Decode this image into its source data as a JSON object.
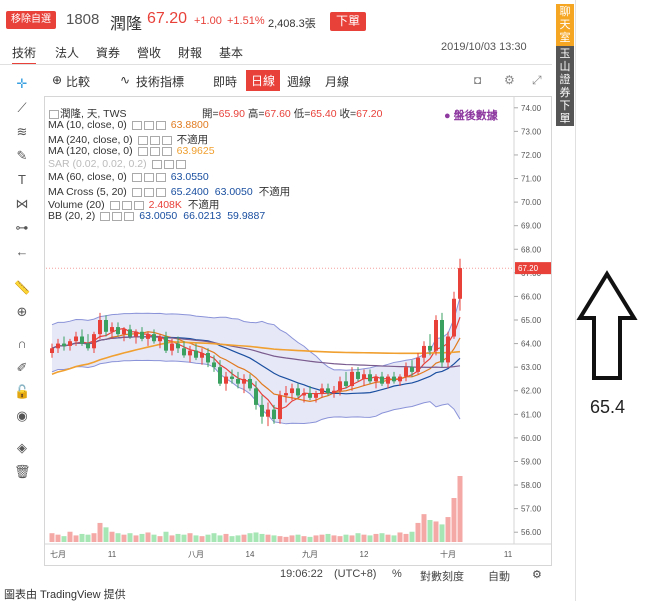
{
  "header": {
    "remove_label": "移除自選",
    "code": "1808",
    "name": "潤隆",
    "price": "67.20",
    "change": "+1.00",
    "change_pct": "+1.51%",
    "volume": "2,408.3張",
    "order_label": "下單",
    "datetime": "2019/10/03 13:30"
  },
  "tabs": [
    "技術",
    "法人",
    "資券",
    "營收",
    "財報",
    "基本"
  ],
  "toolbar": {
    "compare": "比較",
    "indicators": "技術指標",
    "realtime": "即時",
    "daily": "日線",
    "weekly": "週線",
    "monthly": "月線"
  },
  "legend": {
    "main": "潤隆, 天, TWS",
    "ohlc": {
      "open_label": "開",
      "open": "65.90",
      "high_label": "高",
      "high": "67.60",
      "low_label": "低",
      "low": "65.40",
      "close_label": "收",
      "close": "67.20"
    },
    "post_data": "盤後數據",
    "rows": [
      {
        "label": "MA (10, close, 0)",
        "values": [
          "63.8800"
        ],
        "color": "#e07b20"
      },
      {
        "label": "MA (240, close, 0)",
        "values": [
          "不適用"
        ],
        "color": "#333333"
      },
      {
        "label": "MA (120, close, 0)",
        "values": [
          "63.9625"
        ],
        "color": "#f0a030"
      },
      {
        "label": "SAR (0.02, 0.02, 0.2)",
        "values": [],
        "color": "#bbbbbb",
        "faded": true
      },
      {
        "label": "MA (60, close, 0)",
        "values": [
          "63.0550"
        ],
        "color": "#1a4fa0"
      },
      {
        "label": "MA Cross (5, 20)",
        "values": [
          "65.2400",
          "63.0050",
          "不適用"
        ],
        "color": "#1a4fa0"
      },
      {
        "label": "Volume (20)",
        "values": [
          "2.408K",
          "不適用"
        ],
        "color": "#e8413a"
      },
      {
        "label": "BB (20, 2)",
        "values": [
          "63.0050",
          "66.0213",
          "59.9887"
        ],
        "color": "#1a4fa0"
      }
    ]
  },
  "status": {
    "time": "19:06:22",
    "tz": "(UTC+8)",
    "pct": "%",
    "log": "對數刻度",
    "auto": "自動"
  },
  "side": {
    "chat": "聊天室",
    "order": "玉山證券下單"
  },
  "note": "65.4",
  "credit": "圖表由 TradingView 提供",
  "chart_data": {
    "type": "candlestick",
    "y_axis_ticks": [
      "74.00",
      "73.00",
      "72.00",
      "71.00",
      "70.00",
      "69.00",
      "68.00",
      "67.00",
      "66.00",
      "65.00",
      "64.00",
      "63.00",
      "62.00",
      "61.00",
      "60.00",
      "59.00",
      "58.00",
      "57.00",
      "56.00"
    ],
    "ylim": [
      55.5,
      74.5
    ],
    "x_axis_ticks": [
      "七月",
      "11",
      "八月",
      "14",
      "九月",
      "12",
      "十月",
      "11"
    ],
    "last_price_label": "67.20",
    "candles": [
      {
        "o": 63.6,
        "h": 64.0,
        "l": 63.4,
        "c": 63.8
      },
      {
        "o": 63.8,
        "h": 64.2,
        "l": 63.6,
        "c": 64.0
      },
      {
        "o": 64.0,
        "h": 64.3,
        "l": 63.7,
        "c": 63.9
      },
      {
        "o": 63.9,
        "h": 64.2,
        "l": 63.7,
        "c": 64.1
      },
      {
        "o": 64.1,
        "h": 64.5,
        "l": 63.9,
        "c": 64.3
      },
      {
        "o": 64.3,
        "h": 64.6,
        "l": 63.9,
        "c": 64.0
      },
      {
        "o": 64.0,
        "h": 64.4,
        "l": 63.7,
        "c": 63.8
      },
      {
        "o": 63.8,
        "h": 64.5,
        "l": 63.6,
        "c": 64.4
      },
      {
        "o": 64.4,
        "h": 65.3,
        "l": 64.2,
        "c": 65.0
      },
      {
        "o": 65.0,
        "h": 65.2,
        "l": 64.3,
        "c": 64.5
      },
      {
        "o": 64.5,
        "h": 64.9,
        "l": 64.2,
        "c": 64.7
      },
      {
        "o": 64.7,
        "h": 64.9,
        "l": 64.3,
        "c": 64.4
      },
      {
        "o": 64.4,
        "h": 64.7,
        "l": 64.1,
        "c": 64.6
      },
      {
        "o": 64.6,
        "h": 64.8,
        "l": 64.2,
        "c": 64.3
      },
      {
        "o": 64.3,
        "h": 64.6,
        "l": 64.0,
        "c": 64.5
      },
      {
        "o": 64.5,
        "h": 64.7,
        "l": 64.1,
        "c": 64.2
      },
      {
        "o": 64.2,
        "h": 64.5,
        "l": 63.9,
        "c": 64.4
      },
      {
        "o": 64.4,
        "h": 64.6,
        "l": 64.0,
        "c": 64.1
      },
      {
        "o": 64.1,
        "h": 64.4,
        "l": 63.8,
        "c": 64.3
      },
      {
        "o": 64.3,
        "h": 64.5,
        "l": 63.6,
        "c": 63.7
      },
      {
        "o": 63.7,
        "h": 64.2,
        "l": 63.5,
        "c": 64.0
      },
      {
        "o": 64.0,
        "h": 64.3,
        "l": 63.6,
        "c": 63.8
      },
      {
        "o": 63.8,
        "h": 64.1,
        "l": 63.4,
        "c": 63.5
      },
      {
        "o": 63.5,
        "h": 63.9,
        "l": 63.2,
        "c": 63.7
      },
      {
        "o": 63.7,
        "h": 64.0,
        "l": 63.3,
        "c": 63.4
      },
      {
        "o": 63.4,
        "h": 63.8,
        "l": 63.1,
        "c": 63.6
      },
      {
        "o": 63.6,
        "h": 63.8,
        "l": 63.0,
        "c": 63.2
      },
      {
        "o": 63.2,
        "h": 63.5,
        "l": 62.8,
        "c": 63.0
      },
      {
        "o": 63.0,
        "h": 63.3,
        "l": 62.2,
        "c": 62.3
      },
      {
        "o": 62.3,
        "h": 62.8,
        "l": 62.0,
        "c": 62.6
      },
      {
        "o": 62.6,
        "h": 62.9,
        "l": 62.3,
        "c": 62.5
      },
      {
        "o": 62.5,
        "h": 62.8,
        "l": 62.1,
        "c": 62.3
      },
      {
        "o": 62.3,
        "h": 62.7,
        "l": 61.9,
        "c": 62.5
      },
      {
        "o": 62.5,
        "h": 62.7,
        "l": 62.0,
        "c": 62.1
      },
      {
        "o": 62.1,
        "h": 62.4,
        "l": 61.2,
        "c": 61.4
      },
      {
        "o": 61.4,
        "h": 61.8,
        "l": 60.6,
        "c": 60.9
      },
      {
        "o": 60.9,
        "h": 61.5,
        "l": 60.5,
        "c": 61.2
      },
      {
        "o": 61.2,
        "h": 61.4,
        "l": 60.6,
        "c": 60.8
      },
      {
        "o": 60.8,
        "h": 62.0,
        "l": 60.6,
        "c": 61.8
      },
      {
        "o": 61.8,
        "h": 62.2,
        "l": 61.5,
        "c": 61.9
      },
      {
        "o": 61.9,
        "h": 62.3,
        "l": 61.6,
        "c": 62.1
      },
      {
        "o": 62.1,
        "h": 62.3,
        "l": 61.7,
        "c": 61.8
      },
      {
        "o": 61.8,
        "h": 62.1,
        "l": 61.5,
        "c": 61.9
      },
      {
        "o": 61.9,
        "h": 62.2,
        "l": 61.6,
        "c": 61.7
      },
      {
        "o": 61.7,
        "h": 62.0,
        "l": 61.5,
        "c": 61.9
      },
      {
        "o": 61.9,
        "h": 62.3,
        "l": 61.7,
        "c": 62.1
      },
      {
        "o": 62.1,
        "h": 62.3,
        "l": 61.8,
        "c": 61.9
      },
      {
        "o": 61.9,
        "h": 62.2,
        "l": 61.7,
        "c": 62.0
      },
      {
        "o": 62.0,
        "h": 62.6,
        "l": 61.8,
        "c": 62.4
      },
      {
        "o": 62.4,
        "h": 62.8,
        "l": 62.1,
        "c": 62.2
      },
      {
        "o": 62.2,
        "h": 63.0,
        "l": 62.0,
        "c": 62.8
      },
      {
        "o": 62.8,
        "h": 63.0,
        "l": 62.4,
        "c": 62.5
      },
      {
        "o": 62.5,
        "h": 62.9,
        "l": 62.2,
        "c": 62.7
      },
      {
        "o": 62.7,
        "h": 62.9,
        "l": 62.3,
        "c": 62.4
      },
      {
        "o": 62.4,
        "h": 62.7,
        "l": 62.1,
        "c": 62.6
      },
      {
        "o": 62.6,
        "h": 62.8,
        "l": 62.2,
        "c": 62.3
      },
      {
        "o": 62.3,
        "h": 62.7,
        "l": 62.1,
        "c": 62.6
      },
      {
        "o": 62.6,
        "h": 62.8,
        "l": 62.3,
        "c": 62.4
      },
      {
        "o": 62.4,
        "h": 62.7,
        "l": 62.2,
        "c": 62.6
      },
      {
        "o": 62.6,
        "h": 63.2,
        "l": 62.4,
        "c": 63.0
      },
      {
        "o": 63.0,
        "h": 63.3,
        "l": 62.6,
        "c": 62.8
      },
      {
        "o": 62.8,
        "h": 63.6,
        "l": 62.7,
        "c": 63.4
      },
      {
        "o": 63.4,
        "h": 64.1,
        "l": 63.2,
        "c": 63.9
      },
      {
        "o": 63.9,
        "h": 64.4,
        "l": 63.5,
        "c": 63.7
      },
      {
        "o": 63.7,
        "h": 65.2,
        "l": 63.5,
        "c": 65.0
      },
      {
        "o": 65.0,
        "h": 65.3,
        "l": 63.0,
        "c": 63.2
      },
      {
        "o": 63.2,
        "h": 64.5,
        "l": 63.0,
        "c": 64.3
      },
      {
        "o": 64.3,
        "h": 66.2,
        "l": 64.2,
        "c": 65.9
      },
      {
        "o": 65.9,
        "h": 67.6,
        "l": 65.4,
        "c": 67.2
      }
    ],
    "volume": [
      12,
      10,
      8,
      14,
      9,
      11,
      10,
      12,
      26,
      20,
      14,
      12,
      10,
      12,
      9,
      11,
      13,
      10,
      8,
      14,
      9,
      11,
      10,
      12,
      9,
      8,
      10,
      12,
      9,
      11,
      8,
      9,
      10,
      12,
      13,
      11,
      10,
      9,
      8,
      7,
      9,
      10,
      8,
      7,
      9,
      10,
      11,
      9,
      8,
      10,
      9,
      12,
      10,
      9,
      11,
      12,
      10,
      9,
      13,
      11,
      14,
      26,
      38,
      30,
      28,
      24,
      34,
      60,
      90
    ]
  }
}
